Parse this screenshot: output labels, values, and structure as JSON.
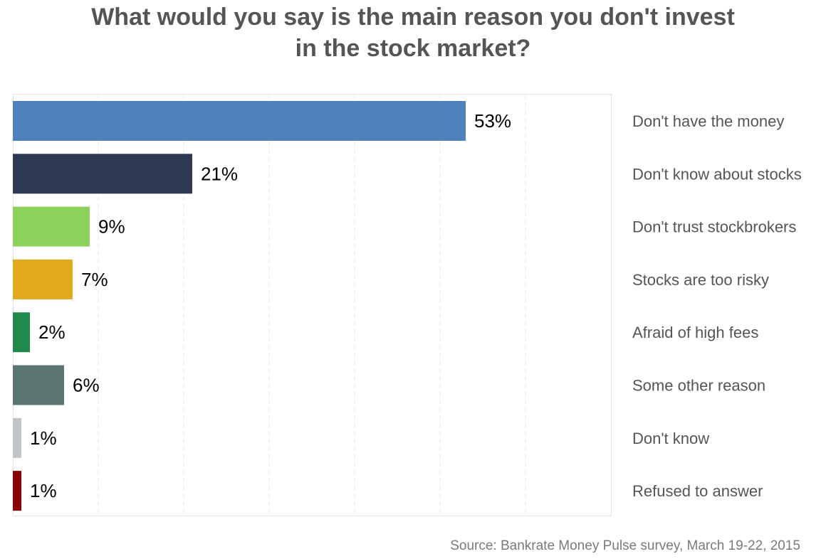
{
  "chart_data": {
    "type": "bar",
    "orientation": "horizontal",
    "title": "What would you say is the main reason you don't invest in the stock market?",
    "categories": [
      "Don't have the money",
      "Don't know about stocks",
      "Don't trust stockbrokers",
      "Stocks are too risky",
      "Afraid of high fees",
      "Some other reason",
      "Don't know",
      "Refused to answer"
    ],
    "values": [
      53,
      21,
      9,
      7,
      2,
      6,
      1,
      1
    ],
    "value_labels": [
      "53%",
      "21%",
      "9%",
      "7%",
      "2%",
      "6%",
      "1%",
      "1%"
    ],
    "colors": [
      "#4f81bd",
      "#2d3a52",
      "#8cd15a",
      "#e0a91e",
      "#1f8a4c",
      "#5a7572",
      "#c0c3c8",
      "#8b0000"
    ],
    "xlim": [
      0,
      70
    ],
    "grid": true,
    "legend": "none",
    "source": "Source: Bankrate Money Pulse survey, March 19-22, 2015"
  }
}
